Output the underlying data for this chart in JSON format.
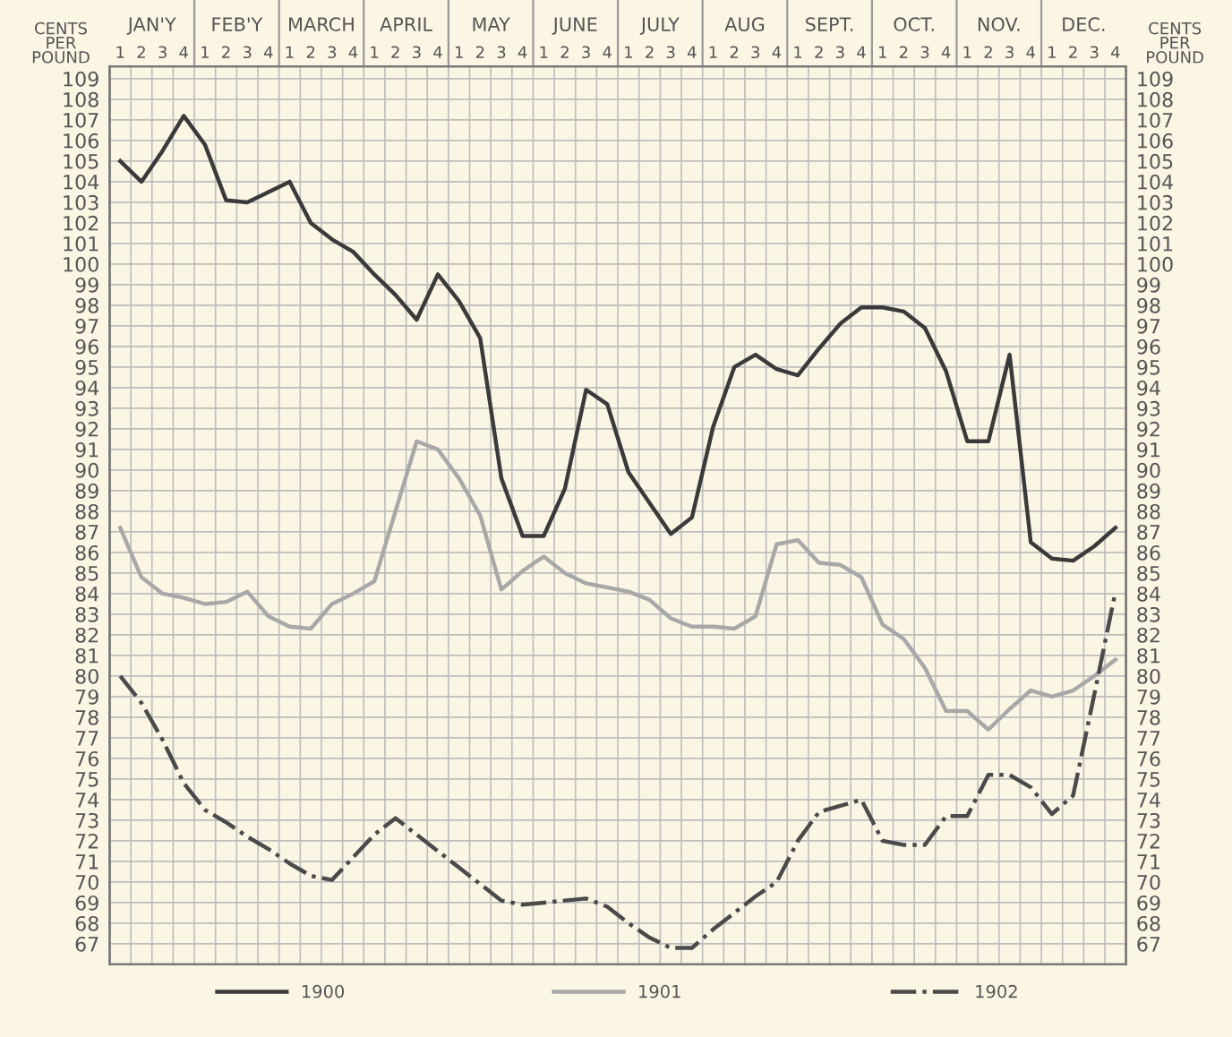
{
  "chart_data": {
    "type": "line",
    "ylabel": "CENTS\nPER\nPOUND",
    "y2label": "CENTS\nPER\nPOUND",
    "annotations": [
      "JAN'Y",
      "FEB'Y",
      "MARCH",
      "APRIL",
      "MAY",
      "JUNE",
      "JULY",
      "AUG",
      "SEPT.",
      "OCT.",
      "NOV.",
      "DEC."
    ],
    "categories": [
      "1",
      "2",
      "3",
      "4",
      "1",
      "2",
      "3",
      "4",
      "1",
      "2",
      "3",
      "4",
      "1",
      "2",
      "3",
      "4",
      "1",
      "2",
      "3",
      "4",
      "1",
      "2",
      "3",
      "4",
      "1",
      "2",
      "3",
      "4",
      "1",
      "2",
      "3",
      "4",
      "1",
      "2",
      "3",
      "4",
      "1",
      "2",
      "3",
      "4",
      "1",
      "2",
      "3",
      "4",
      "1",
      "2",
      "3",
      "4"
    ],
    "ylim": [
      66,
      109.6
    ],
    "yticks": [
      67,
      68,
      69,
      70,
      71,
      72,
      73,
      74,
      75,
      76,
      77,
      78,
      79,
      80,
      81,
      82,
      83,
      84,
      85,
      86,
      87,
      88,
      89,
      90,
      91,
      92,
      93,
      94,
      95,
      96,
      97,
      98,
      99,
      100,
      101,
      102,
      103,
      104,
      105,
      106,
      107,
      108,
      109
    ],
    "y2lim": [
      66,
      109.6
    ],
    "y2ticks": [
      67,
      68,
      69,
      70,
      71,
      72,
      73,
      74,
      75,
      76,
      77,
      78,
      79,
      80,
      81,
      82,
      83,
      84,
      85,
      86,
      87,
      88,
      89,
      90,
      91,
      92,
      93,
      94,
      95,
      96,
      97,
      98,
      99,
      100,
      101,
      102,
      103,
      104,
      105,
      106,
      107,
      108,
      109
    ],
    "grid": true,
    "legend": "bottom",
    "marker": "none",
    "series": [
      {
        "name": "1900",
        "color": "#3a3a3a",
        "line_style": "solid",
        "values": [
          105,
          104,
          105.5,
          107.2,
          105.8,
          103.1,
          103,
          103.5,
          104,
          102,
          101.2,
          100.6,
          99.5,
          98.5,
          97.3,
          99.5,
          98.2,
          96.4,
          89.6,
          86.8,
          86.8,
          89.1,
          93.9,
          93.2,
          89.9,
          88.4,
          86.9,
          87.7,
          92.1,
          95.0,
          95.6,
          94.9,
          94.6,
          95.9,
          97.1,
          97.9,
          97.9,
          97.7,
          96.9,
          94.8,
          91.4,
          91.4,
          95.6,
          86.5,
          85.7,
          85.6,
          86.3,
          87.2
        ]
      },
      {
        "name": "1901",
        "color": "#a8a8a8",
        "line_style": "solid",
        "values": [
          87.2,
          84.8,
          84.0,
          83.8,
          83.5,
          83.6,
          84.1,
          82.9,
          82.4,
          82.3,
          83.5,
          84.0,
          84.6,
          88.0,
          91.4,
          91.0,
          89.6,
          87.8,
          84.2,
          85.1,
          85.8,
          85.0,
          84.5,
          84.3,
          84.1,
          83.7,
          82.8,
          82.4,
          82.4,
          82.3,
          82.9,
          86.4,
          86.6,
          85.5,
          85.4,
          84.8,
          82.5,
          81.8,
          80.4,
          78.3,
          78.3,
          77.4,
          78.4,
          79.3,
          79.0,
          79.3,
          80.0,
          80.8
        ]
      },
      {
        "name": "1902",
        "color": "#4a4a4a",
        "line_style": "dashdot",
        "values": [
          80.0,
          78.7,
          76.9,
          74.8,
          73.5,
          72.9,
          72.2,
          71.6,
          70.9,
          70.3,
          70.1,
          71.2,
          72.3,
          73.1,
          72.3,
          71.5,
          70.7,
          69.9,
          69.1,
          68.9,
          69.0,
          69.1,
          69.2,
          68.8,
          68.0,
          67.3,
          66.8,
          66.8,
          67.7,
          68.5,
          69.3,
          70.0,
          72.0,
          73.4,
          73.7,
          74.0,
          72.0,
          71.8,
          71.8,
          73.2,
          73.2,
          75.2,
          75.2,
          74.6,
          73.3,
          74.2,
          79.1,
          84.1
        ]
      }
    ]
  }
}
